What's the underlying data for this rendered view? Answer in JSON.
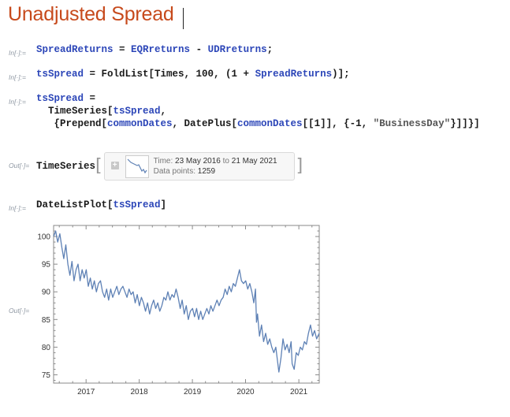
{
  "title": "Unadjusted Spread",
  "cells": [
    {
      "label": "In[·]:=",
      "lines": [
        [
          {
            "t": "SpreadReturns",
            "c": "v"
          },
          {
            "t": " = "
          },
          {
            "t": "EQRreturns",
            "c": "v"
          },
          {
            "t": " - "
          },
          {
            "t": "UDRreturns",
            "c": "v"
          },
          {
            "t": ";"
          }
        ]
      ]
    },
    {
      "label": "In[·]:=",
      "lines": [
        [
          {
            "t": "tsSpread",
            "c": "v"
          },
          {
            "t": " = FoldList[Times, 100, (1 + "
          },
          {
            "t": "SpreadReturns",
            "c": "v"
          },
          {
            "t": ")];"
          }
        ]
      ]
    },
    {
      "label": "In[·]:=",
      "lines": [
        [
          {
            "t": "tsSpread",
            "c": "v"
          },
          {
            "t": " ="
          }
        ],
        [
          {
            "t": "  TimeSeries["
          },
          {
            "t": "tsSpread",
            "c": "v"
          },
          {
            "t": ","
          }
        ],
        [
          {
            "t": "   {Prepend["
          },
          {
            "t": "commonDates",
            "c": "v"
          },
          {
            "t": ", DatePlus["
          },
          {
            "t": "commonDates",
            "c": "v"
          },
          {
            "t": "[[1]], {-1, "
          },
          {
            "t": "\"BusinessDay\"",
            "c": "s"
          },
          {
            "t": "}]]}]"
          }
        ]
      ]
    },
    {
      "label": "In[·]:=",
      "lines": [
        [
          {
            "t": "DateListPlot["
          },
          {
            "t": "tsSpread",
            "c": "v"
          },
          {
            "t": "]"
          }
        ]
      ]
    }
  ],
  "out_label_1": "Out[·]=",
  "out_label_2": "Out[·]=",
  "timeseries": {
    "head": "TimeSeries",
    "open": "[",
    "close": "]",
    "time_label": "Time: ",
    "start": "23 May 2016",
    "to": " to ",
    "end": "21 May 2021",
    "points_label": "Data points: ",
    "points": "1259"
  },
  "chart_data": {
    "type": "line",
    "x_ticks": [
      "2017",
      "2018",
      "2019",
      "2020",
      "2021"
    ],
    "y_ticks": [
      75,
      80,
      85,
      90,
      95,
      100
    ],
    "xlim": [
      "2016-05-23",
      "2021-05-21"
    ],
    "ylim": [
      73.5,
      102
    ],
    "line_color": "#5e81b5",
    "series": [
      {
        "points": [
          [
            "2016-05-23",
            100
          ],
          [
            "2016-06-06",
            101
          ],
          [
            "2016-06-20",
            99
          ],
          [
            "2016-07-05",
            100.5
          ],
          [
            "2016-07-19",
            98
          ],
          [
            "2016-08-01",
            96
          ],
          [
            "2016-08-15",
            98.5
          ],
          [
            "2016-08-29",
            95
          ],
          [
            "2016-09-12",
            93
          ],
          [
            "2016-09-26",
            95.5
          ],
          [
            "2016-10-10",
            92
          ],
          [
            "2016-10-24",
            94
          ],
          [
            "2016-11-07",
            95
          ],
          [
            "2016-11-21",
            92
          ],
          [
            "2016-12-05",
            94
          ],
          [
            "2016-12-19",
            92.5
          ],
          [
            "2017-01-02",
            94
          ],
          [
            "2017-01-16",
            91
          ],
          [
            "2017-01-30",
            92.5
          ],
          [
            "2017-02-13",
            90.5
          ],
          [
            "2017-02-27",
            92
          ],
          [
            "2017-03-13",
            90
          ],
          [
            "2017-03-27",
            91.5
          ],
          [
            "2017-04-10",
            92
          ],
          [
            "2017-04-24",
            90
          ],
          [
            "2017-05-08",
            89
          ],
          [
            "2017-05-22",
            90.5
          ],
          [
            "2017-06-05",
            88.5
          ],
          [
            "2017-06-19",
            90.5
          ],
          [
            "2017-07-03",
            89
          ],
          [
            "2017-07-17",
            90
          ],
          [
            "2017-07-31",
            91
          ],
          [
            "2017-08-14",
            89.5
          ],
          [
            "2017-08-28",
            90.5
          ],
          [
            "2017-09-11",
            91
          ],
          [
            "2017-09-25",
            90
          ],
          [
            "2017-10-09",
            89
          ],
          [
            "2017-10-23",
            90.5
          ],
          [
            "2017-11-06",
            89.5
          ],
          [
            "2017-11-20",
            90
          ],
          [
            "2017-12-04",
            88
          ],
          [
            "2017-12-18",
            89.5
          ],
          [
            "2018-01-02",
            87.5
          ],
          [
            "2018-01-16",
            89
          ],
          [
            "2018-01-30",
            88
          ],
          [
            "2018-02-13",
            86.5
          ],
          [
            "2018-02-27",
            88
          ],
          [
            "2018-03-13",
            86
          ],
          [
            "2018-03-27",
            87.5
          ],
          [
            "2018-04-10",
            88.5
          ],
          [
            "2018-04-24",
            87
          ],
          [
            "2018-05-08",
            88
          ],
          [
            "2018-05-22",
            86.5
          ],
          [
            "2018-06-05",
            87.5
          ],
          [
            "2018-06-19",
            89
          ],
          [
            "2018-07-03",
            88.5
          ],
          [
            "2018-07-17",
            90
          ],
          [
            "2018-07-31",
            88.5
          ],
          [
            "2018-08-14",
            89.5
          ],
          [
            "2018-08-28",
            89
          ],
          [
            "2018-09-11",
            90.5
          ],
          [
            "2018-09-25",
            89
          ],
          [
            "2018-10-09",
            87
          ],
          [
            "2018-10-23",
            88.5
          ],
          [
            "2018-11-06",
            86
          ],
          [
            "2018-11-20",
            87.5
          ],
          [
            "2018-12-04",
            85
          ],
          [
            "2018-12-18",
            86.5
          ],
          [
            "2019-01-02",
            87
          ],
          [
            "2019-01-16",
            85.5
          ],
          [
            "2019-01-30",
            87
          ],
          [
            "2019-02-13",
            85
          ],
          [
            "2019-02-27",
            86.5
          ],
          [
            "2019-03-13",
            85
          ],
          [
            "2019-03-27",
            86
          ],
          [
            "2019-04-10",
            87
          ],
          [
            "2019-04-24",
            86
          ],
          [
            "2019-05-08",
            87.5
          ],
          [
            "2019-05-22",
            86.5
          ],
          [
            "2019-06-05",
            87.5
          ],
          [
            "2019-06-19",
            88.5
          ],
          [
            "2019-07-03",
            87.5
          ],
          [
            "2019-07-17",
            88.5
          ],
          [
            "2019-07-31",
            89
          ],
          [
            "2019-08-14",
            90.5
          ],
          [
            "2019-08-28",
            89.5
          ],
          [
            "2019-09-11",
            91
          ],
          [
            "2019-09-25",
            90
          ],
          [
            "2019-10-09",
            91.5
          ],
          [
            "2019-10-23",
            91
          ],
          [
            "2019-11-06",
            92.5
          ],
          [
            "2019-11-20",
            94
          ],
          [
            "2019-12-04",
            92
          ],
          [
            "2019-12-18",
            91.5
          ],
          [
            "2020-01-02",
            92
          ],
          [
            "2020-01-16",
            90.5
          ],
          [
            "2020-01-30",
            91.5
          ],
          [
            "2020-02-13",
            90
          ],
          [
            "2020-02-27",
            88
          ],
          [
            "2020-03-09",
            90.5
          ],
          [
            "2020-03-16",
            84.5
          ],
          [
            "2020-03-23",
            86
          ],
          [
            "2020-04-06",
            82
          ],
          [
            "2020-04-20",
            84
          ],
          [
            "2020-05-04",
            81
          ],
          [
            "2020-05-18",
            82.5
          ],
          [
            "2020-06-01",
            80.5
          ],
          [
            "2020-06-15",
            81.5
          ],
          [
            "2020-06-29",
            80
          ],
          [
            "2020-07-13",
            79
          ],
          [
            "2020-07-27",
            80
          ],
          [
            "2020-08-10",
            77
          ],
          [
            "2020-08-17",
            75.5
          ],
          [
            "2020-08-31",
            78
          ],
          [
            "2020-09-14",
            81.5
          ],
          [
            "2020-09-28",
            79.5
          ],
          [
            "2020-10-12",
            80.5
          ],
          [
            "2020-10-26",
            79
          ],
          [
            "2020-11-09",
            81
          ],
          [
            "2020-11-16",
            77
          ],
          [
            "2020-11-30",
            76
          ],
          [
            "2020-12-14",
            79
          ],
          [
            "2020-12-28",
            78.5
          ],
          [
            "2021-01-11",
            80
          ],
          [
            "2021-01-25",
            79.5
          ],
          [
            "2021-02-08",
            81
          ],
          [
            "2021-02-22",
            80.5
          ],
          [
            "2021-03-08",
            82.5
          ],
          [
            "2021-03-22",
            84
          ],
          [
            "2021-04-05",
            82
          ],
          [
            "2021-04-19",
            83
          ],
          [
            "2021-05-03",
            81.5
          ],
          [
            "2021-05-21",
            82.5
          ]
        ]
      }
    ]
  }
}
